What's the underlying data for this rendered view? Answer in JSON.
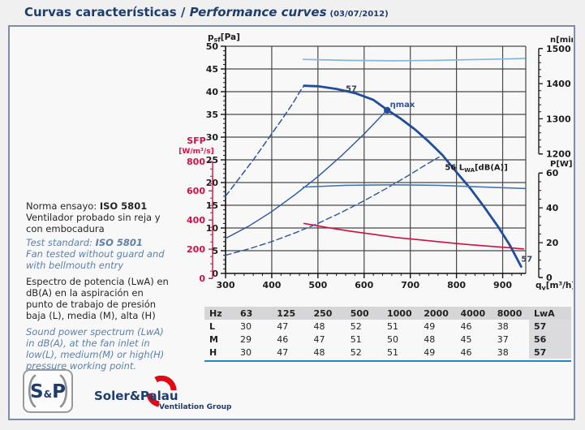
{
  "title": {
    "es": "Curvas características",
    "sep": " / ",
    "en": "Performance curves",
    "date": "(03/07/2012)"
  },
  "sidebar": {
    "norma_es_label": "Norma ensayo: ",
    "norma_es_value": "ISO 5801",
    "norma_es_desc": "Ventilador probado sin reja y con embocadura",
    "norma_en_label": "Test standard: ",
    "norma_en_value": "ISO 5801",
    "norma_en_desc": "Fan tested without guard and with bellmouth entry",
    "spectrum_es": "Espectro de potencia (LwA) en dB(A) en la aspiración en punto de trabajo de presión baja (L), media (M), alta (H)",
    "spectrum_en": "Sound power spectrum (LwA) in dB(A), at the fan inlet in low(L), medium(M) or high(H) pressure working point."
  },
  "table": {
    "headers": [
      "Hz",
      "63",
      "125",
      "250",
      "500",
      "1000",
      "2000",
      "4000",
      "8000",
      "LwA"
    ],
    "rows": [
      {
        "label": "L",
        "values": [
          "30",
          "47",
          "48",
          "52",
          "51",
          "49",
          "46",
          "38"
        ],
        "lwa": "57"
      },
      {
        "label": "M",
        "values": [
          "29",
          "46",
          "47",
          "51",
          "50",
          "48",
          "45",
          "37"
        ],
        "lwa": "56"
      },
      {
        "label": "H",
        "values": [
          "30",
          "47",
          "48",
          "52",
          "51",
          "49",
          "46",
          "38"
        ],
        "lwa": "57"
      }
    ]
  },
  "logo": {
    "sp_s": "S",
    "sp_amp": "&",
    "sp_p": "P",
    "name": "Soler&Palau",
    "group": "Ventilation Group"
  },
  "chart_data": {
    "type": "line",
    "title": "",
    "x_axis": {
      "min": 300,
      "max": 950,
      "major_tick": 100,
      "minor_tick": 20,
      "tick_labels": [
        300,
        400,
        500,
        600,
        700,
        800,
        900
      ],
      "label_parts": [
        {
          "t": "q"
        },
        {
          "t": "v",
          "sub": true
        },
        {
          "t": "[m³/h]"
        }
      ]
    },
    "y_axis_pressure": {
      "min": 0,
      "max": 50,
      "major_tick": 5,
      "minor_tick": 1,
      "label_parts": [
        {
          "t": "p"
        },
        {
          "t": "sf",
          "sub": true
        },
        {
          "t": "[Pa]"
        }
      ]
    },
    "secondary_axes": [
      {
        "id": "sfp",
        "label_lines": [
          "SFP",
          "[W/m³/s]"
        ],
        "color": "#d11243",
        "val_range": [
          0,
          800
        ],
        "pa_range": [
          -1.1,
          24.6
        ],
        "ticks": [
          0,
          200,
          400,
          600,
          800
        ],
        "minor_step": 50,
        "side": "left"
      },
      {
        "id": "speed",
        "label_lines": [
          "n[min⁻¹]"
        ],
        "color": "#1c1c1c",
        "val_range": [
          1200,
          1500
        ],
        "pa_range": [
          26.3,
          49.5
        ],
        "ticks": [
          1200,
          1300,
          1400,
          1500
        ],
        "minor_step": 20,
        "side": "right"
      },
      {
        "id": "power",
        "label_lines": [
          "P[W]"
        ],
        "color": "#1c1c1c",
        "val_range": [
          0,
          60
        ],
        "pa_range": [
          -0.9,
          22.1
        ],
        "ticks": [
          0,
          20,
          40,
          60
        ],
        "minor_step": 5,
        "side": "right"
      }
    ],
    "series": [
      {
        "name": "static-pressure-curve",
        "axis": "pa",
        "color": "#1f4e9b",
        "width": 2.8,
        "dash": null,
        "points": [
          [
            470,
            41.3
          ],
          [
            500,
            41.2
          ],
          [
            540,
            40.6
          ],
          [
            580,
            39.7
          ],
          [
            620,
            38.2
          ],
          [
            650,
            36
          ],
          [
            680,
            34
          ],
          [
            710,
            31.7
          ],
          [
            740,
            29
          ],
          [
            770,
            26
          ],
          [
            800,
            22.3
          ],
          [
            830,
            18.7
          ],
          [
            860,
            14.6
          ],
          [
            890,
            10.3
          ],
          [
            915,
            6.3
          ],
          [
            940,
            1.5
          ]
        ]
      },
      {
        "name": "stall-region-curve",
        "axis": "pa",
        "color": "#2a55a0",
        "width": 1.5,
        "dash": "7 4",
        "points": [
          [
            300,
            17
          ],
          [
            330,
            21
          ],
          [
            360,
            25
          ],
          [
            390,
            29.3
          ],
          [
            420,
            33.6
          ],
          [
            445,
            37.3
          ],
          [
            462,
            40.2
          ],
          [
            470,
            41.3
          ]
        ]
      },
      {
        "name": "max-efficiency-system-line",
        "axis": "pa",
        "color": "#2a55a0",
        "width": 1.4,
        "dash": null,
        "points": [
          [
            300,
            7.7
          ],
          [
            350,
            10.4
          ],
          [
            400,
            13.6
          ],
          [
            450,
            17.3
          ],
          [
            500,
            21.3
          ],
          [
            550,
            25.8
          ],
          [
            600,
            30.7
          ],
          [
            650,
            36
          ]
        ]
      },
      {
        "name": "sound-power-curve-56dBA",
        "axis": "pa",
        "color": "#2a55a0",
        "width": 1.4,
        "dash": "7 4",
        "points": [
          [
            300,
            4
          ],
          [
            350,
            5.4
          ],
          [
            400,
            7
          ],
          [
            450,
            8.9
          ],
          [
            500,
            11
          ],
          [
            550,
            13.4
          ],
          [
            600,
            16
          ],
          [
            650,
            18.8
          ],
          [
            700,
            21.8
          ],
          [
            735,
            24
          ],
          [
            762,
            25.6
          ]
        ]
      },
      {
        "name": "rotation-speed-curve-n1470",
        "axis": "n",
        "color": "#85b7da",
        "width": 1.7,
        "dash": null,
        "points": [
          [
            468,
            47.1
          ],
          [
            560,
            46.9
          ],
          [
            660,
            46.8
          ],
          [
            760,
            46.9
          ],
          [
            860,
            47.1
          ],
          [
            948,
            47.3
          ]
        ]
      },
      {
        "name": "input-power-curve-P50W",
        "axis": "P",
        "color": "#4577b4",
        "width": 1.6,
        "dash": null,
        "points": [
          [
            468,
            19
          ],
          [
            560,
            19.4
          ],
          [
            660,
            19.5
          ],
          [
            760,
            19.4
          ],
          [
            860,
            19
          ],
          [
            948,
            18.7
          ]
        ]
      },
      {
        "name": "sfp-curve",
        "axis": "sfp",
        "color": "#cf1040",
        "width": 1.6,
        "dash": null,
        "points": [
          [
            470,
            11
          ],
          [
            520,
            10.1
          ],
          [
            570,
            9.3
          ],
          [
            620,
            8.6
          ],
          [
            670,
            7.9
          ],
          [
            720,
            7.4
          ],
          [
            770,
            6.9
          ],
          [
            820,
            6.4
          ],
          [
            870,
            6
          ],
          [
            920,
            5.6
          ],
          [
            945,
            5.4
          ]
        ]
      }
    ],
    "marker": {
      "q": 650,
      "pa": 35.9,
      "color": "#1f4e9b"
    },
    "annotations": [
      {
        "parts": [
          {
            "t": "57"
          }
        ],
        "q": 560,
        "pa": 40.1,
        "color": "#3c4356"
      },
      {
        "parts": [
          {
            "t": "ηmax"
          }
        ],
        "q": 656,
        "pa": 36.6,
        "color": "#2b57a0"
      },
      {
        "parts": [
          {
            "t": "56 L"
          },
          {
            "t": "WA",
            "sub": true
          },
          {
            "t": "[dB(A)]"
          }
        ],
        "q": 775,
        "pa": 22.8,
        "color": "#1c1c1c"
      },
      {
        "parts": [
          {
            "t": "57"
          }
        ],
        "q": 940,
        "pa": 2.6,
        "color": "#3c4356"
      }
    ],
    "grid": true,
    "legend": "none"
  }
}
